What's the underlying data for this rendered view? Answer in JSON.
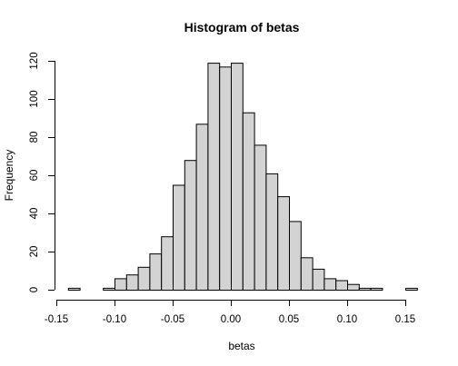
{
  "chart_data": {
    "type": "bar",
    "title": "Histogram of betas",
    "xlabel": "betas",
    "ylabel": "Frequency",
    "bin_width": 0.01,
    "bin_starts": [
      -0.14,
      -0.13,
      -0.12,
      -0.11,
      -0.1,
      -0.09,
      -0.08,
      -0.07,
      -0.06,
      -0.05,
      -0.04,
      -0.03,
      -0.02,
      -0.01,
      0.0,
      0.01,
      0.02,
      0.03,
      0.04,
      0.05,
      0.06,
      0.07,
      0.08,
      0.09,
      0.1,
      0.11,
      0.12,
      0.13,
      0.14,
      0.15
    ],
    "values": [
      1,
      0,
      0,
      1,
      6,
      8,
      12,
      19,
      28,
      55,
      68,
      87,
      119,
      117,
      119,
      93,
      76,
      61,
      49,
      36,
      17,
      11,
      6,
      5,
      3,
      1,
      1,
      0,
      0,
      1
    ],
    "xlim": [
      -0.15,
      0.15
    ],
    "ylim": [
      0,
      120
    ],
    "x_ticks": [
      -0.15,
      -0.1,
      -0.05,
      0.0,
      0.05,
      0.1,
      0.15
    ],
    "x_tick_labels": [
      "-0.15",
      "-0.10",
      "-0.05",
      "0.00",
      "0.05",
      "0.10",
      "0.15"
    ],
    "y_ticks": [
      0,
      20,
      40,
      60,
      80,
      100,
      120
    ],
    "y_tick_labels": [
      "0",
      "20",
      "40",
      "60",
      "80",
      "100",
      "120"
    ],
    "grid": false
  }
}
